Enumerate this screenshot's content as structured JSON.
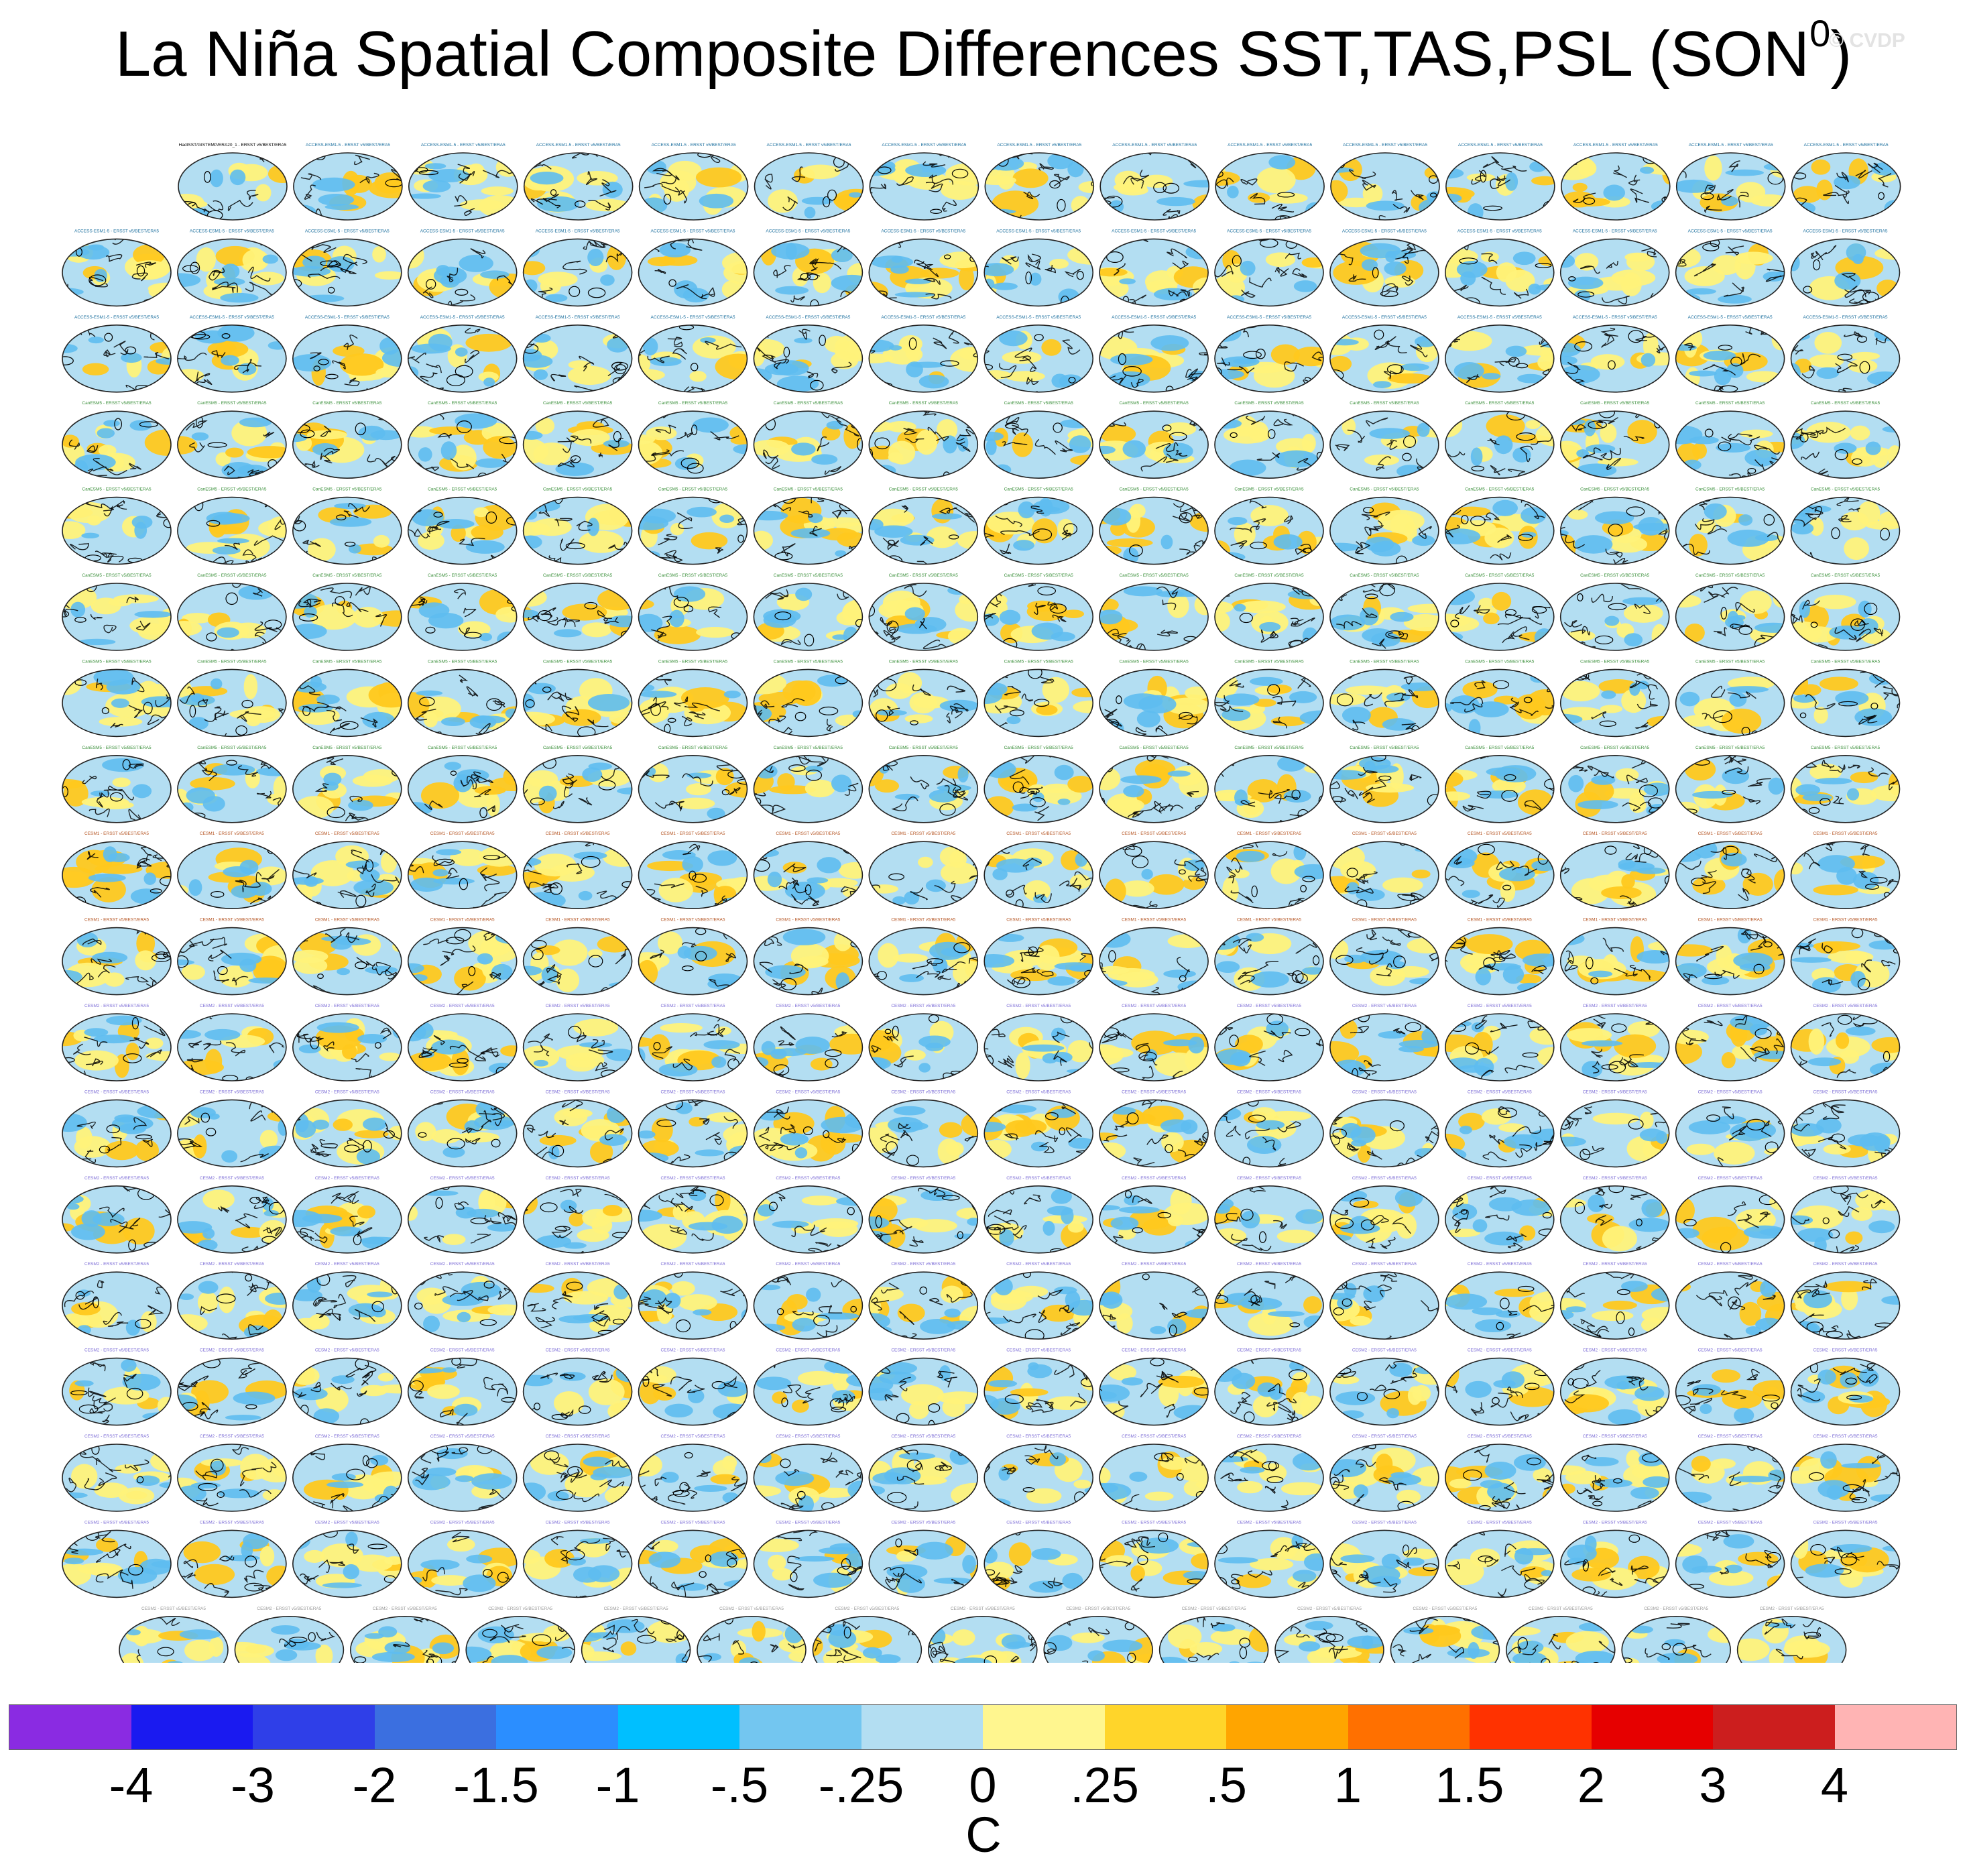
{
  "header": {
    "title": "La Niña Spatial Composite Differences SST,TAS,PSL (SON",
    "title_superscript": "0",
    "title_close": ")",
    "watermark": "© CVDP"
  },
  "panel_grid": {
    "rows_panels": [
      15,
      16,
      16,
      16,
      16,
      16,
      16,
      16,
      16,
      16,
      16,
      16,
      16,
      16,
      16,
      16,
      16,
      15
    ],
    "first_panel_title": "HadISST/GISTEMP/ERA20_1 - ERSST v5/BEST/ERA5",
    "panel_title_suffix": "- ERSST v5/BEST/ERA5",
    "panel_title_model_groups": [
      {
        "name": "ACCESS-ESM1-5",
        "color": "#1b6f9e",
        "rows": [
          0,
          1,
          2
        ]
      },
      {
        "name": "CanESM5",
        "color": "#3a8f3a",
        "rows": [
          3,
          4,
          5,
          6,
          7
        ]
      },
      {
        "name": "CESM1",
        "color": "#b4521f",
        "rows": [
          8,
          9
        ]
      },
      {
        "name": "CESM2",
        "color": "#7b6bd6",
        "rows": [
          10,
          11,
          12,
          13,
          14,
          15,
          16
        ]
      },
      {
        "name": "CESM2",
        "color": "#9a9a9a",
        "rows": [
          17
        ]
      }
    ],
    "map_colors": {
      "ocean_cool": "#b3def2",
      "ocean_blue": "#5ebcef",
      "warm_yellow": "#fff27a",
      "warm_orange": "#ffc81e",
      "contours": "#000000"
    }
  },
  "chart_data": {
    "type": "heatmap",
    "title": "La Niña Spatial Composite Differences SST,TAS,PSL (SON0)",
    "panels": 286,
    "colorbar": {
      "units": "C",
      "colors": [
        "#8a2be2",
        "#1a1af0",
        "#2f3fe8",
        "#3b6fe0",
        "#2b8eff",
        "#00bfff",
        "#73c6f0",
        "#b3def2",
        "#fff68f",
        "#ffd52a",
        "#ffa500",
        "#ff7000",
        "#ff3200",
        "#e60000",
        "#cc1e1e",
        "#ffb4b4"
      ],
      "tick_labels": [
        "-4",
        "-3",
        "-2",
        "-1.5",
        "-1",
        "-.5",
        "-.25",
        "0",
        ".25",
        ".5",
        "1",
        "1.5",
        "2",
        "3",
        "4"
      ]
    }
  }
}
